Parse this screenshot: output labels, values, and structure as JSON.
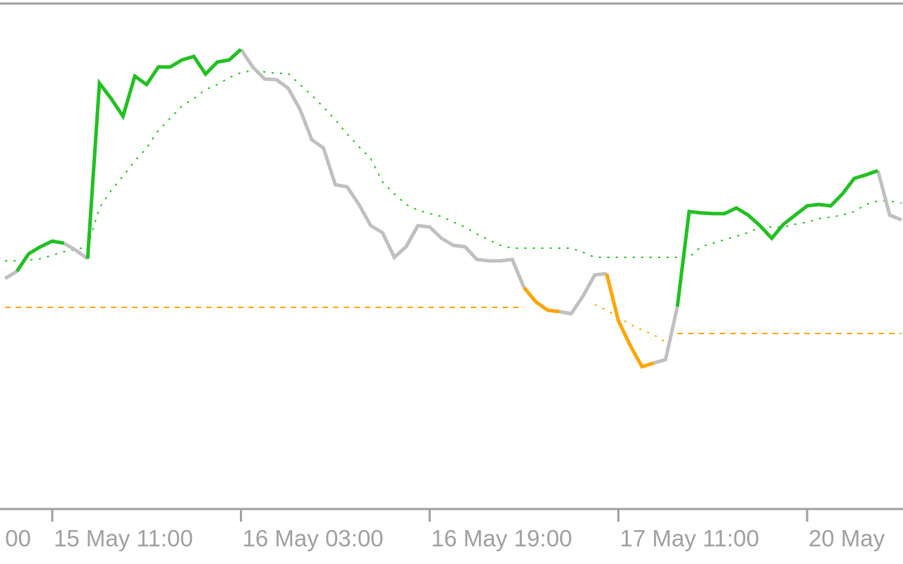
{
  "chart_data": {
    "type": "line",
    "x": [
      -4,
      -3,
      -2,
      -1,
      0,
      1,
      2,
      3,
      4,
      5,
      6,
      7,
      8,
      9,
      10,
      11,
      12,
      13,
      14,
      15,
      16,
      17,
      18,
      19,
      20,
      21,
      22,
      23,
      24,
      25,
      26,
      27,
      28,
      29,
      30,
      31,
      32,
      33,
      34,
      35,
      36,
      37,
      38,
      39,
      40,
      41,
      42,
      43,
      44,
      45,
      46,
      47,
      48,
      49,
      50,
      51,
      52,
      53,
      54,
      55,
      56,
      57,
      58,
      59,
      60,
      61,
      62,
      63,
      64,
      65,
      66,
      67,
      68,
      69,
      70,
      71,
      72
    ],
    "xlim": [
      -4.43,
      72.13
    ],
    "xticks": [
      {
        "value": -16,
        "label": "00"
      },
      {
        "value": 0,
        "label": "15 May 11:00"
      },
      {
        "value": 16,
        "label": "16 May 03:00"
      },
      {
        "value": 32,
        "label": "16 May 19:00"
      },
      {
        "value": 48,
        "label": "17 May 11:00"
      },
      {
        "value": 64,
        "label": "20 May"
      }
    ],
    "ylim": [
      0,
      717
    ],
    "series": [
      {
        "color": "#ffa500",
        "style": "dashed",
        "width": 2,
        "values": [
          286,
          286,
          286,
          286,
          286,
          286,
          286,
          286,
          286,
          286,
          286,
          286,
          286,
          286,
          286,
          286,
          286,
          286,
          286,
          286,
          286,
          286,
          286,
          286,
          286,
          286,
          286,
          286,
          286,
          286,
          286,
          286,
          286,
          286,
          286,
          286,
          286,
          286,
          286,
          286,
          286,
          286,
          286,
          286,
          286,
          null,
          null,
          null,
          null,
          null,
          null,
          null,
          null,
          null,
          null,
          null,
          null,
          249,
          249,
          249,
          249,
          249,
          249,
          249,
          249,
          249,
          249,
          249,
          249,
          249,
          249,
          249,
          249,
          249,
          249,
          249,
          249
        ]
      },
      {
        "color": "#22c022",
        "style": "dotted",
        "width": 2,
        "values": [
          352,
          352,
          353,
          355,
          360,
          365,
          368,
          372,
          427,
          452,
          472,
          494,
          512,
          537,
          554,
          572,
          582,
          595,
          602,
          612,
          619,
          622,
          620,
          618,
          618,
          602,
          587,
          570,
          552,
          532,
          514,
          497,
          464,
          447,
          432,
          424,
          419,
          415,
          407,
          400,
          390,
          382,
          374,
          370,
          370,
          370,
          370,
          370,
          370,
          364,
          357,
          357,
          357,
          357,
          357,
          357,
          357,
          357,
          357,
          372,
          377,
          382,
          387,
          392,
          400,
          400,
          400,
          404,
          407,
          412,
          414,
          417,
          422,
          432,
          437,
          437,
          434
        ]
      },
      {
        "color": "#ffa500",
        "style": "dotted",
        "width": 2,
        "values": [
          null,
          null,
          null,
          null,
          null,
          null,
          null,
          null,
          null,
          null,
          null,
          null,
          null,
          null,
          null,
          null,
          null,
          null,
          null,
          null,
          null,
          null,
          null,
          null,
          null,
          null,
          null,
          null,
          null,
          null,
          null,
          null,
          null,
          null,
          null,
          null,
          null,
          null,
          null,
          null,
          null,
          null,
          null,
          null,
          null,
          null,
          null,
          null,
          null,
          null,
          290,
          282,
          272,
          262,
          254,
          247,
          237,
          null,
          null,
          null,
          null,
          null,
          null,
          null,
          null,
          null,
          null,
          null,
          null,
          null,
          null,
          null,
          null,
          null,
          null,
          null,
          null
        ]
      },
      {
        "color": "#c0c0c0",
        "style": "solid",
        "width": 5,
        "values": [
          327,
          337,
          null,
          null,
          null,
          377,
          367,
          355,
          null,
          null,
          null,
          null,
          null,
          null,
          null,
          null,
          null,
          null,
          null,
          null,
          652,
          627,
          610,
          609,
          597,
          567,
          524,
          512,
          460,
          457,
          432,
          402,
          392,
          357,
          372,
          402,
          400,
          384,
          374,
          372,
          354,
          352,
          352,
          354,
          314,
          null,
          null,
          280,
          277,
          302,
          332,
          334,
          null,
          null,
          null,
          207,
          212,
          287,
          null,
          null,
          null,
          null,
          null,
          null,
          null,
          null,
          null,
          null,
          null,
          null,
          null,
          null,
          null,
          null,
          480,
          417,
          410
        ]
      },
      {
        "color": "#ffa500",
        "style": "solid",
        "width": 5,
        "values": [
          null,
          null,
          null,
          null,
          null,
          null,
          null,
          null,
          null,
          null,
          null,
          null,
          null,
          null,
          null,
          null,
          null,
          null,
          null,
          null,
          null,
          null,
          null,
          null,
          null,
          null,
          null,
          null,
          null,
          null,
          null,
          null,
          null,
          null,
          null,
          null,
          null,
          null,
          null,
          null,
          null,
          null,
          null,
          null,
          314,
          294,
          282,
          280,
          null,
          null,
          null,
          334,
          267,
          232,
          202,
          207,
          null,
          null,
          null,
          null,
          null,
          null,
          null,
          null,
          null,
          null,
          null,
          null,
          null,
          null,
          null,
          null,
          null,
          null,
          null,
          null,
          null
        ]
      },
      {
        "color": "#22c022",
        "style": "solid",
        "width": 5,
        "values": [
          null,
          337,
          362,
          372,
          380,
          377,
          null,
          355,
          604,
          582,
          557,
          614,
          602,
          627,
          627,
          637,
          642,
          617,
          634,
          637,
          652,
          null,
          null,
          null,
          null,
          null,
          null,
          null,
          null,
          null,
          null,
          null,
          null,
          null,
          null,
          null,
          null,
          null,
          null,
          null,
          null,
          null,
          null,
          null,
          null,
          null,
          null,
          null,
          null,
          null,
          null,
          null,
          null,
          null,
          null,
          null,
          null,
          287,
          422,
          420,
          419,
          419,
          427,
          417,
          402,
          384,
          404,
          417,
          430,
          432,
          430,
          447,
          469,
          474,
          480,
          null,
          null
        ]
      }
    ]
  }
}
